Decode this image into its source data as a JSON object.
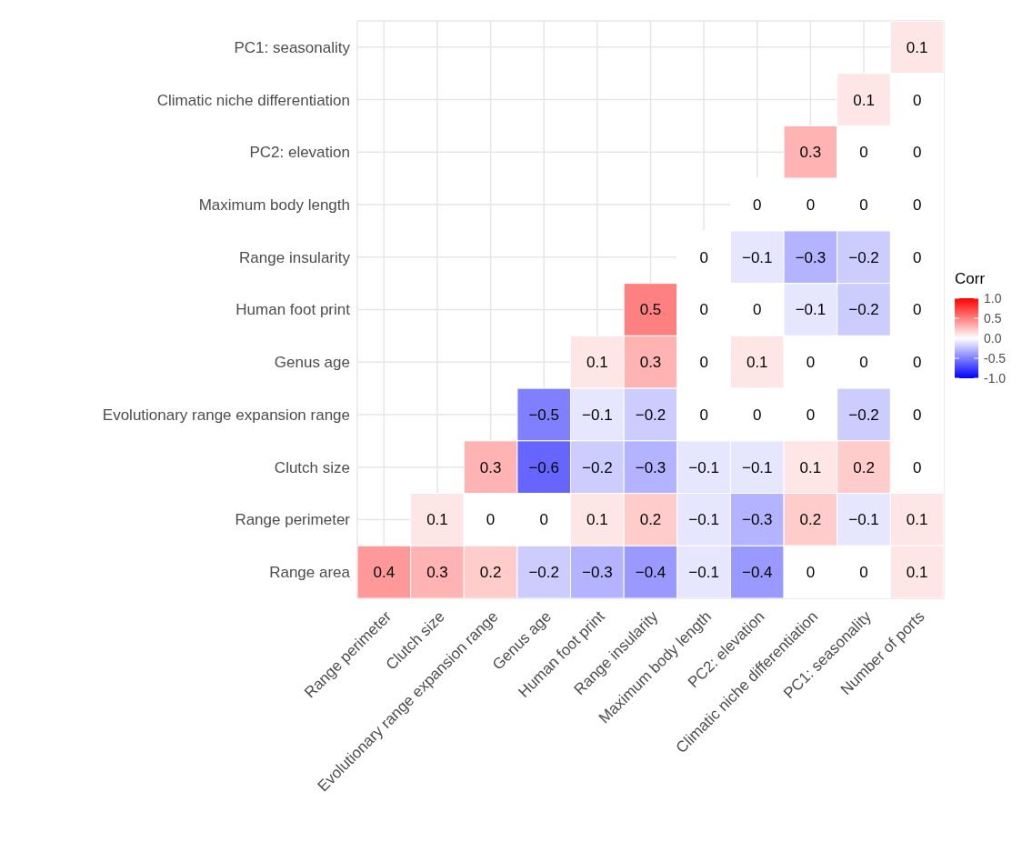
{
  "chart_data": {
    "type": "heatmap",
    "categories": [
      "Range perimeter",
      "Clutch size",
      "Evolutionary range expansion range",
      "Genus age",
      "Human foot print",
      "Range insularity",
      "Maximum body length",
      "PC2: elevation",
      "Climatic niche differentiation",
      "PC1: seasonality",
      "Number of ports"
    ],
    "y_categories": [
      "PC1: seasonality",
      "Climatic niche differentiation",
      "PC2: elevation",
      "Maximum body length",
      "Range insularity",
      "Human foot print",
      "Genus age",
      "Evolutionary range expansion range",
      "Clutch size",
      "Range perimeter",
      "Range area"
    ],
    "cells": [
      [
        null,
        null,
        null,
        null,
        null,
        null,
        null,
        null,
        null,
        null,
        0.1
      ],
      [
        null,
        null,
        null,
        null,
        null,
        null,
        null,
        null,
        null,
        0.1,
        0
      ],
      [
        null,
        null,
        null,
        null,
        null,
        null,
        null,
        null,
        0.3,
        0,
        0
      ],
      [
        null,
        null,
        null,
        null,
        null,
        null,
        null,
        0,
        0,
        0,
        0
      ],
      [
        null,
        null,
        null,
        null,
        null,
        null,
        0,
        -0.1,
        -0.3,
        -0.2,
        0
      ],
      [
        null,
        null,
        null,
        null,
        null,
        0.5,
        0,
        0,
        -0.1,
        -0.2,
        0
      ],
      [
        null,
        null,
        null,
        null,
        0.1,
        0.3,
        0,
        0.1,
        0,
        0,
        0
      ],
      [
        null,
        null,
        null,
        -0.5,
        -0.1,
        -0.2,
        0,
        0,
        0,
        -0.2,
        0
      ],
      [
        null,
        null,
        0.3,
        -0.6,
        -0.2,
        -0.3,
        -0.1,
        -0.1,
        0.1,
        0.2,
        0
      ],
      [
        null,
        0.1,
        0,
        0,
        0.1,
        0.2,
        -0.1,
        -0.3,
        0.2,
        -0.1,
        0.1
      ],
      [
        0.4,
        0.3,
        0.2,
        -0.2,
        -0.3,
        -0.4,
        -0.1,
        -0.4,
        0,
        0,
        0.1
      ]
    ],
    "cell_labels": [
      [
        null,
        null,
        null,
        null,
        null,
        null,
        null,
        null,
        null,
        null,
        "0.1"
      ],
      [
        null,
        null,
        null,
        null,
        null,
        null,
        null,
        null,
        null,
        "0.1",
        "0"
      ],
      [
        null,
        null,
        null,
        null,
        null,
        null,
        null,
        null,
        "0.3",
        "0",
        "0"
      ],
      [
        null,
        null,
        null,
        null,
        null,
        null,
        null,
        "0",
        "0",
        "0",
        "0"
      ],
      [
        null,
        null,
        null,
        null,
        null,
        null,
        "0",
        "−0.1",
        "−0.3",
        "−0.2",
        "0"
      ],
      [
        null,
        null,
        null,
        null,
        null,
        "0.5",
        "0",
        "0",
        "−0.1",
        "−0.2",
        "0"
      ],
      [
        null,
        null,
        null,
        null,
        "0.1",
        "0.3",
        "0",
        "0.1",
        "0",
        "0",
        "0"
      ],
      [
        null,
        null,
        null,
        "−0.5",
        "−0.1",
        "−0.2",
        "0",
        "0",
        "0",
        "−0.2",
        "0"
      ],
      [
        null,
        null,
        "0.3",
        "−0.6",
        "−0.2",
        "−0.3",
        "−0.1",
        "−0.1",
        "0.1",
        "0.2",
        "0"
      ],
      [
        null,
        "0.1",
        "0",
        "0",
        "0.1",
        "0.2",
        "−0.1",
        "−0.3",
        "0.2",
        "−0.1",
        "0.1"
      ],
      [
        "0.4",
        "0.3",
        "0.2",
        "−0.2",
        "−0.3",
        "−0.4",
        "−0.1",
        "−0.4",
        "0",
        "0",
        "0.1"
      ]
    ],
    "colors": [
      "#0000ff",
      "#ffffff",
      "#ff0000"
    ],
    "clabel": "Corr",
    "clim": [
      -1,
      1
    ],
    "cticks": [
      {
        "value": -1,
        "label": "-1.0"
      },
      {
        "value": -0.5,
        "label": "-0.5"
      },
      {
        "value": 0,
        "label": "0.0"
      },
      {
        "value": 0.5,
        "label": "0.5"
      },
      {
        "value": 1,
        "label": "1.0"
      }
    ],
    "grid": true
  }
}
